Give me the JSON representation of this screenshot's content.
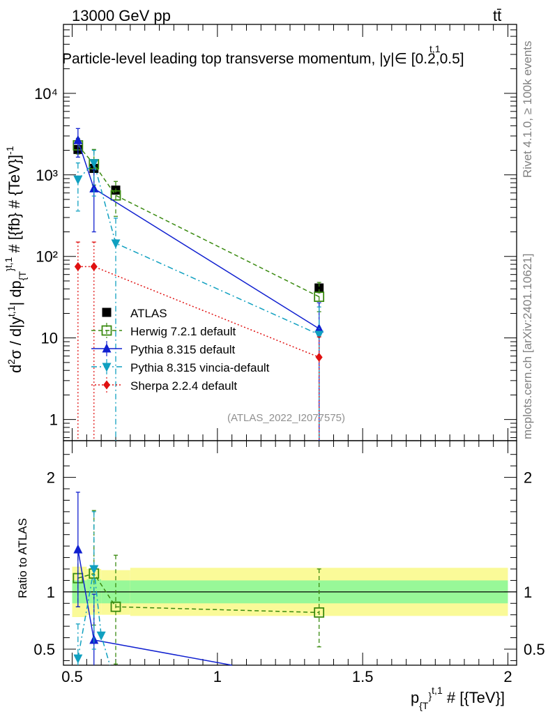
{
  "header": {
    "energy_label": "13000 GeV pp",
    "process_label": "tt̄",
    "plot_title": "Particle-level leading top transverse momentum, |y^{t,1}| ∈ [0.2,0.5]",
    "plot_title_display": "Particle-level leading top transverse momentum, |y|∈ [0.2,0.5]",
    "plot_title_sup": "t,1"
  },
  "side_labels": {
    "rivet": "Rivet 4.1.0, ≥ 100k events",
    "mcplots": "mcplots.cern.ch [arXiv:2401.10621]"
  },
  "analysis_id": "(ATLAS_2022_I2077575)",
  "colors": {
    "atlas": "#000000",
    "herwig": "#3a8a10",
    "pythia": "#1020d0",
    "vincia": "#10a0c0",
    "sherpa": "#e01010",
    "band_inner": "#98f898",
    "band_outer": "#fafa98"
  },
  "chart_data": [
    {
      "type": "line",
      "panel": "main",
      "ylabel": "d²σ / d|y^{t,1}| dp_{T}^{t,1} # [{fb} # {TeV}]^{-1}",
      "xlabel": "p_{T}^{t,1} # [{TeV}]",
      "yscale": "log",
      "xlim": [
        0.47,
        2.03
      ],
      "ylim": [
        0.55,
        70000
      ],
      "y_ticks": [
        {
          "value": 1,
          "label": "1"
        },
        {
          "value": 10,
          "label": "10"
        },
        {
          "value": 100,
          "label": "10²"
        },
        {
          "value": 1000,
          "label": "10³"
        },
        {
          "value": 10000,
          "label": "10⁴"
        }
      ],
      "series": [
        {
          "name": "ATLAS",
          "key": "atlas",
          "marker": "square",
          "x": [
            0.52,
            0.575,
            0.65,
            1.35
          ],
          "values": [
            2050,
            1200,
            650,
            41
          ],
          "err_low": [
            170,
            110,
            70,
            5
          ],
          "err_high": [
            170,
            110,
            70,
            5
          ]
        },
        {
          "name": "Herwig 7.2.1 default",
          "key": "herwig",
          "marker": "open-square",
          "x": [
            0.52,
            0.575,
            0.65,
            1.35
          ],
          "values": [
            2300,
            1350,
            560,
            32
          ],
          "err_low": [
            500,
            600,
            250,
            11
          ],
          "err_high": [
            500,
            700,
            270,
            16
          ]
        },
        {
          "name": "Pythia 8.315 default",
          "key": "pythia",
          "marker": "triangle-up",
          "x": [
            0.52,
            0.575,
            1.35
          ],
          "values": [
            2650,
            680,
            13
          ],
          "err_low": [
            1000,
            480,
            12.9
          ],
          "err_high": [
            1050,
            480,
            14
          ]
        },
        {
          "name": "Pythia 8.315 vincia-default",
          "key": "vincia",
          "marker": "triangle-down",
          "x": [
            0.52,
            0.575,
            0.65,
            1.35
          ],
          "values": [
            880,
            1400,
            145,
            11
          ],
          "err_low": [
            520,
            850,
            144.9,
            10.9
          ],
          "err_high": [
            520,
            600,
            150,
            13
          ]
        },
        {
          "name": "Sherpa 2.2.4 default",
          "key": "sherpa",
          "marker": "diamond",
          "x": [
            0.52,
            0.575,
            1.35
          ],
          "values": [
            75,
            75,
            5.8
          ],
          "err_low": [
            74.9,
            74.9,
            5.79
          ],
          "err_high": [
            75,
            75,
            4.5
          ]
        }
      ]
    },
    {
      "type": "line",
      "panel": "ratio",
      "ylabel": "Ratio to ATLAS",
      "xlabel": "p_{T}^{t,1} # [{TeV}]",
      "xlim": [
        0.47,
        2.03
      ],
      "ylim": [
        0.36,
        2.32
      ],
      "x_ticks": [
        {
          "value": 0.5,
          "label": "0.5"
        },
        {
          "value": 1,
          "label": "1"
        },
        {
          "value": 1.5,
          "label": "1.5"
        },
        {
          "value": 2,
          "label": "2"
        }
      ],
      "y_ticks": [
        {
          "value": 0.5,
          "label": "0.5"
        },
        {
          "value": 1,
          "label": "1"
        },
        {
          "value": 2,
          "label": "2"
        }
      ],
      "bands": {
        "bins": [
          {
            "x0": 0.5,
            "x1": 0.55,
            "inner": [
              0.9,
              1.1
            ],
            "outer": [
              0.78,
              1.22
            ]
          },
          {
            "x0": 0.55,
            "x1": 0.6,
            "inner": [
              0.9,
              1.11
            ],
            "outer": [
              0.8,
              1.2
            ]
          },
          {
            "x0": 0.6,
            "x1": 0.7,
            "inner": [
              0.9,
              1.1
            ],
            "outer": [
              0.8,
              1.19
            ]
          },
          {
            "x0": 0.7,
            "x1": 2.0,
            "inner": [
              0.9,
              1.1
            ],
            "outer": [
              0.79,
              1.21
            ]
          }
        ]
      },
      "reference": 1.0,
      "series": [
        {
          "name": "Herwig 7.2.1 default",
          "key": "herwig",
          "marker": "open-square",
          "x": [
            0.52,
            0.575,
            0.65,
            1.35
          ],
          "values": [
            1.12,
            1.16,
            0.87,
            0.82
          ],
          "err_low": [
            0.25,
            0.45,
            0.5,
            0.3
          ],
          "err_high": [
            0.25,
            0.55,
            0.45,
            0.38
          ]
        },
        {
          "name": "Pythia 8.315 default",
          "key": "pythia",
          "marker": "triangle-up",
          "x": [
            0.52,
            0.575,
            1.05
          ],
          "values": [
            1.37,
            0.58,
            0.32
          ],
          "err_low": [
            0.5,
            0.4,
            0
          ],
          "err_high": [
            0.5,
            0.4,
            0
          ]
        },
        {
          "name": "Pythia 8.315 vincia-default",
          "key": "vincia",
          "marker": "triangle-down",
          "x": [
            0.52,
            0.575,
            0.6,
            0.63
          ],
          "values": [
            0.42,
            1.2,
            0.62,
            0.28
          ],
          "err_low": [
            0.3,
            0.7,
            0,
            0
          ],
          "err_high": [
            0.3,
            0.5,
            0,
            0
          ]
        }
      ]
    }
  ]
}
